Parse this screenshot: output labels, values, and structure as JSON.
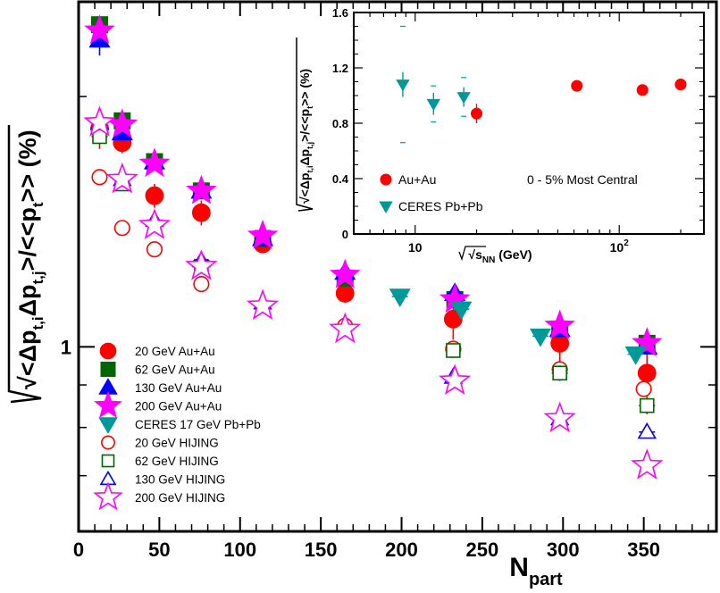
{
  "chart_data": [
    {
      "type": "scatter",
      "title": "",
      "xlabel": "N",
      "xlabel_sub": "part",
      "ylabel": "√<Δp_t,i Δp_t,j>/<<p_t>> (%)",
      "ylabel_parts": [
        "√<Δp",
        "t,i",
        "Δp",
        "t,j",
        ">/<<p",
        "t",
        ">> (%)"
      ],
      "xlim": [
        0,
        395
      ],
      "ylim_log": [
        0.6,
        2.6
      ],
      "y_scale": "log",
      "xticks": [
        0,
        50,
        100,
        150,
        200,
        250,
        300,
        350
      ],
      "xtick_labels": [
        "0",
        "50",
        "100",
        "150",
        "200",
        "250",
        "300",
        "350"
      ],
      "ytick_labels": [
        {
          "value": 1,
          "label": "1"
        }
      ],
      "legend_position": "bottom-left",
      "series": [
        {
          "name": "20 GeV Au+Au",
          "marker": "circle",
          "filled": true,
          "color": "#ff0000",
          "x": [
            13,
            27,
            47,
            76,
            114,
            165,
            232,
            298,
            352
          ],
          "y": [
            1.83,
            1.76,
            1.52,
            1.45,
            1.33,
            1.16,
            1.08,
            1.01,
            0.93
          ],
          "yerr": [
            0.1,
            0.05,
            0.05,
            0.05,
            0.02,
            0.03,
            0.06,
            0.06,
            0.06
          ]
        },
        {
          "name": "62 GeV Au+Au",
          "marker": "square",
          "filled": true,
          "color": "#006600",
          "x": [
            13,
            27,
            47,
            76,
            114,
            165,
            233,
            298,
            352
          ],
          "y": [
            2.44,
            1.87,
            1.67,
            1.54,
            1.35,
            1.21,
            1.14,
            1.05,
            1.01
          ],
          "yerr": [
            0.03,
            0.03,
            0.02,
            0.02,
            0.02,
            0.02,
            0.02,
            0.02,
            0.02
          ]
        },
        {
          "name": "130 GeV Au+Au",
          "marker": "triangle-up",
          "filled": true,
          "color": "#0000ff",
          "x": [
            13,
            27,
            47,
            76,
            114,
            165,
            233,
            298,
            352
          ],
          "y": [
            2.34,
            1.81,
            1.67,
            1.54,
            1.35,
            1.23,
            1.16,
            1.05,
            1.0
          ],
          "yerr": [
            0.1,
            0.04,
            0.03,
            0.02,
            0.02,
            0.02,
            0.02,
            0.02,
            0.02
          ]
        },
        {
          "name": "200 GeV Au+Au",
          "marker": "star",
          "filled": true,
          "color": "#ff00ff",
          "x": [
            13,
            27,
            47,
            76,
            114,
            165,
            233,
            298,
            352
          ],
          "y": [
            2.4,
            1.85,
            1.66,
            1.54,
            1.36,
            1.22,
            1.14,
            1.06,
            1.01
          ],
          "yerr": [
            0.05,
            0.03,
            0.02,
            0.02,
            0.02,
            0.02,
            0.02,
            0.02,
            0.02
          ]
        },
        {
          "name": "CERES 17 GeV Pb+Pb",
          "marker": "triangle-down",
          "filled": true,
          "color": "#009999",
          "x": [
            199,
            237,
            286,
            345
          ],
          "y": [
            1.15,
            1.11,
            1.03,
            0.98
          ],
          "yerr": [
            0.02,
            0.02,
            0.02,
            0.02
          ]
        },
        {
          "name": "20 GeV HIJING",
          "marker": "circle",
          "filled": false,
          "color": "#ff0000",
          "x": [
            13,
            27,
            47,
            76,
            165,
            232,
            298,
            350
          ],
          "y": [
            1.6,
            1.39,
            1.31,
            1.19,
            1.06,
            0.995,
            0.94,
            0.89
          ],
          "yerr": [
            0.01,
            0.01,
            0.01,
            0.01,
            0.01,
            0.01,
            0.01,
            0.01
          ]
        },
        {
          "name": "62 GeV HIJING",
          "marker": "square",
          "filled": false,
          "color": "#006600",
          "x": [
            13,
            27,
            76,
            232,
            298,
            352
          ],
          "y": [
            1.79,
            1.57,
            1.25,
            0.99,
            0.93,
            0.85
          ],
          "yerr": [
            0.03,
            0.02,
            0.02,
            0.02,
            0.02,
            0.02
          ]
        },
        {
          "name": "130 GeV HIJING",
          "marker": "triangle-up",
          "filled": false,
          "color": "#0000ff",
          "x": [
            13,
            27,
            47,
            76,
            114,
            232,
            298,
            352
          ],
          "y": [
            1.86,
            1.59,
            1.42,
            1.27,
            1.13,
            0.92,
            0.82,
            0.79
          ],
          "yerr": [
            0.01,
            0.01,
            0.01,
            0.01,
            0.01,
            0.01,
            0.01,
            0.01
          ]
        },
        {
          "name": "200 GeV HIJING",
          "marker": "star",
          "filled": false,
          "color": "#ff00ff",
          "x": [
            13,
            27,
            47,
            76,
            114,
            165,
            233,
            298,
            352
          ],
          "y": [
            1.86,
            1.59,
            1.4,
            1.25,
            1.12,
            1.05,
            0.91,
            0.82,
            0.72
          ],
          "yerr": [
            0.01,
            0.01,
            0.01,
            0.01,
            0.01,
            0.01,
            0.01,
            0.01,
            0.01
          ]
        }
      ]
    },
    {
      "type": "scatter",
      "title": "0 - 5% Most Central",
      "xlabel": "√s_NN (GeV)",
      "xlabel_parts": [
        "√s",
        "NN",
        " (GeV)"
      ],
      "ylabel": "√<Δp_t,i Δp_t,j>/<<p_t>> (%)",
      "ylabel_parts": [
        "√<Δp",
        "t,i",
        "Δp",
        "t,j",
        ">/<<p",
        "t",
        ">> (%)"
      ],
      "x_scale": "log",
      "xlim": [
        5,
        260
      ],
      "ylim": [
        0,
        1.6
      ],
      "yticks": [
        0,
        0.4,
        0.8,
        1.2,
        1.6
      ],
      "ytick_labels": [
        "0",
        "0.4",
        "0.8",
        "1.2",
        "1.6"
      ],
      "xtick_labels": [
        {
          "value": 10,
          "label": "10"
        },
        {
          "value": 100,
          "label": "10",
          "sup": "2"
        }
      ],
      "legend_position": "bottom-left",
      "series": [
        {
          "name": "Au+Au",
          "marker": "circle",
          "filled": true,
          "color": "#ff0000",
          "x": [
            20,
            62,
            130,
            200
          ],
          "y": [
            0.87,
            1.07,
            1.04,
            1.08
          ],
          "yerr": [
            0.07,
            0.02,
            0.03,
            0.02
          ],
          "xerr_sys": [
            0.05,
            0.05,
            0.05,
            0.05
          ]
        },
        {
          "name": "CERES Pb+Pb",
          "marker": "triangle-down",
          "filled": true,
          "color": "#009999",
          "x": [
            8.7,
            12.3,
            17.3
          ],
          "y": [
            1.08,
            0.94,
            0.99
          ],
          "yerr": [
            0.09,
            0.08,
            0.07
          ],
          "ysys": [
            0.42,
            0.13,
            0.14
          ]
        }
      ]
    }
  ]
}
